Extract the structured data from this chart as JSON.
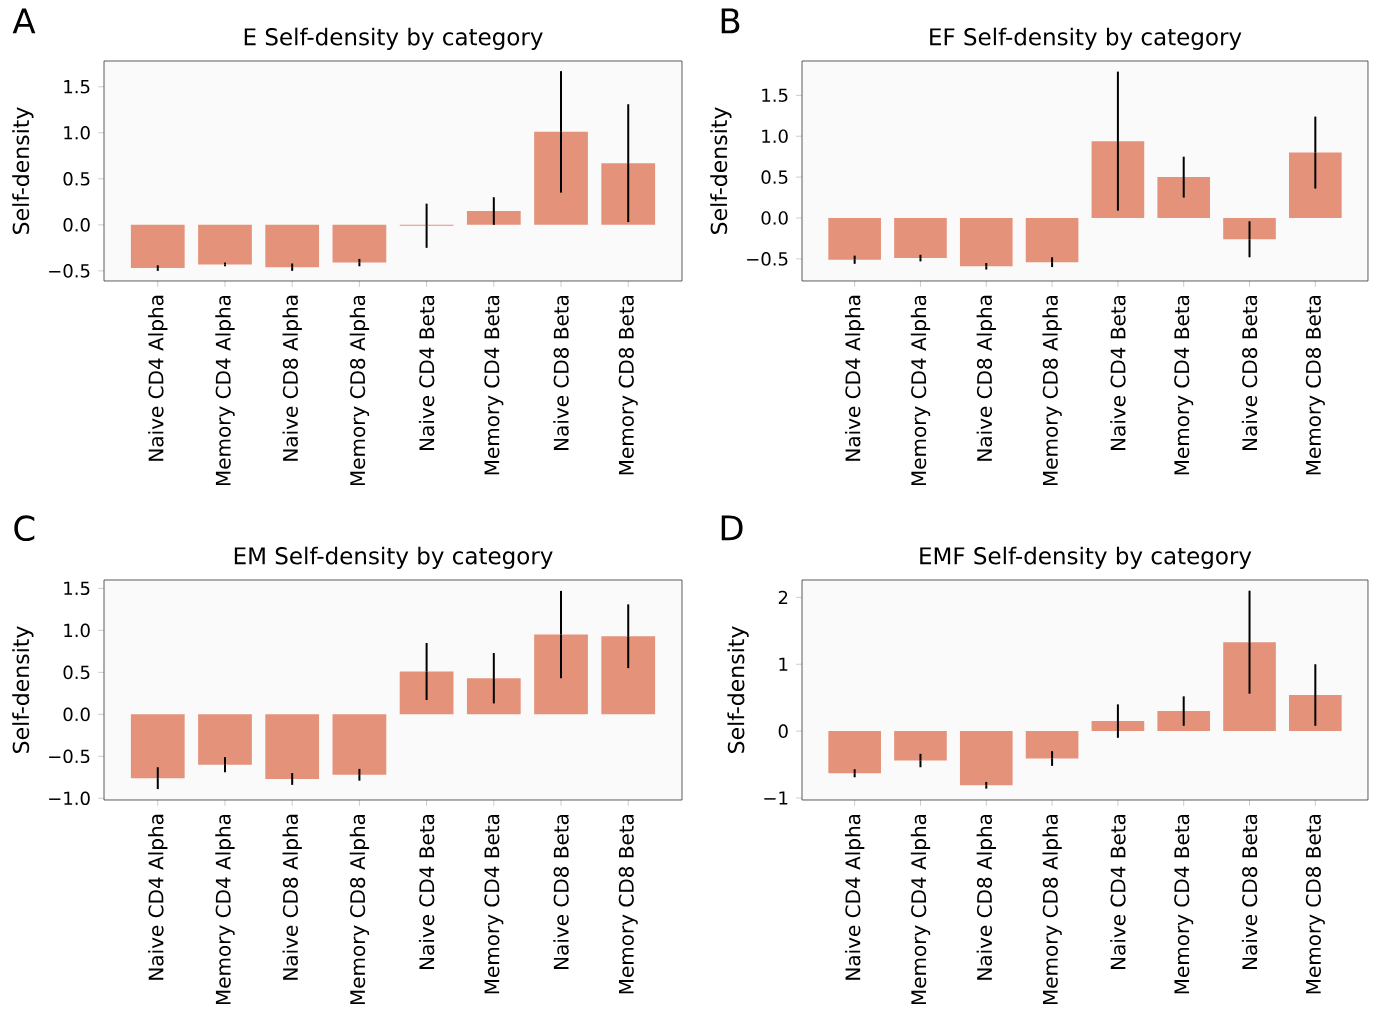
{
  "chart_data": [
    {
      "type": "bar",
      "title": "E Self-density by category",
      "ylabel": "Self-density",
      "annotations": [
        "A"
      ],
      "color": "#e5927a",
      "categories": [
        "Naive CD4 Alpha",
        "Memory CD4 Alpha",
        "Naive CD8 Alpha",
        "Memory CD8 Alpha",
        "Naive CD4 Beta",
        "Memory CD4 Beta",
        "Naive CD8 Beta",
        "Memory CD8 Beta"
      ],
      "values": [
        -0.47,
        -0.43,
        -0.46,
        -0.41,
        -0.01,
        0.15,
        1.01,
        0.67
      ],
      "errors": [
        0.03,
        0.02,
        0.04,
        0.04,
        0.24,
        0.15,
        0.66,
        0.64
      ],
      "ylim": [
        -0.61,
        1.78
      ],
      "yticks": [
        {
          "value": -0.5,
          "label": "−0.5"
        },
        {
          "value": 0,
          "label": "0.0"
        },
        {
          "value": 0.5,
          "label": "0.5"
        },
        {
          "value": 1,
          "label": "1.0"
        },
        {
          "value": 1.5,
          "label": "1.5"
        }
      ]
    },
    {
      "type": "bar",
      "title": "EF Self-density by category",
      "ylabel": "Self-density",
      "annotations": [
        "B"
      ],
      "color": "#e5927a",
      "categories": [
        "Naive CD4 Alpha",
        "Memory CD4 Alpha",
        "Naive CD8 Alpha",
        "Memory CD8 Alpha",
        "Naive CD4 Beta",
        "Memory CD4 Beta",
        "Naive CD8 Beta",
        "Memory CD8 Beta"
      ],
      "values": [
        -0.51,
        -0.49,
        -0.59,
        -0.54,
        0.94,
        0.5,
        -0.26,
        0.8
      ],
      "errors": [
        0.05,
        0.04,
        0.04,
        0.06,
        0.85,
        0.25,
        0.22,
        0.44
      ],
      "ylim": [
        -0.77,
        1.92
      ],
      "yticks": [
        {
          "value": -0.5,
          "label": "−0.5"
        },
        {
          "value": 0,
          "label": "0.0"
        },
        {
          "value": 0.5,
          "label": "0.5"
        },
        {
          "value": 1,
          "label": "1.0"
        },
        {
          "value": 1.5,
          "label": "1.5"
        }
      ]
    },
    {
      "type": "bar",
      "title": "EM Self-density by category",
      "ylabel": "Self-density",
      "annotations": [
        "C"
      ],
      "color": "#e5927a",
      "categories": [
        "Naive CD4 Alpha",
        "Memory CD4 Alpha",
        "Naive CD8 Alpha",
        "Memory CD8 Alpha",
        "Naive CD4 Beta",
        "Memory CD4 Beta",
        "Naive CD8 Beta",
        "Memory CD8 Beta"
      ],
      "values": [
        -0.76,
        -0.6,
        -0.77,
        -0.72,
        0.51,
        0.43,
        0.95,
        0.93
      ],
      "errors": [
        0.13,
        0.09,
        0.07,
        0.07,
        0.34,
        0.3,
        0.52,
        0.38
      ],
      "ylim": [
        -1.02,
        1.6
      ],
      "yticks": [
        {
          "value": -1,
          "label": "−1.0"
        },
        {
          "value": -0.5,
          "label": "−0.5"
        },
        {
          "value": 0,
          "label": "0.0"
        },
        {
          "value": 0.5,
          "label": "0.5"
        },
        {
          "value": 1,
          "label": "1.0"
        },
        {
          "value": 1.5,
          "label": "1.5"
        }
      ]
    },
    {
      "type": "bar",
      "title": "EMF Self-density by category",
      "ylabel": "Self-density",
      "annotations": [
        "D"
      ],
      "color": "#e5927a",
      "categories": [
        "Naive CD4 Alpha",
        "Memory CD4 Alpha",
        "Naive CD8 Alpha",
        "Memory CD8 Alpha",
        "Naive CD4 Beta",
        "Memory CD4 Beta",
        "Naive CD8 Beta",
        "Memory CD8 Beta"
      ],
      "values": [
        -0.63,
        -0.44,
        -0.81,
        -0.41,
        0.15,
        0.3,
        1.33,
        0.54
      ],
      "errors": [
        0.06,
        0.1,
        0.05,
        0.11,
        0.25,
        0.22,
        0.77,
        0.46
      ],
      "ylim": [
        -1.03,
        2.26
      ],
      "yticks": [
        {
          "value": -1,
          "label": "−1"
        },
        {
          "value": 0,
          "label": "0"
        },
        {
          "value": 1,
          "label": "1"
        },
        {
          "value": 2,
          "label": "2"
        }
      ]
    }
  ]
}
